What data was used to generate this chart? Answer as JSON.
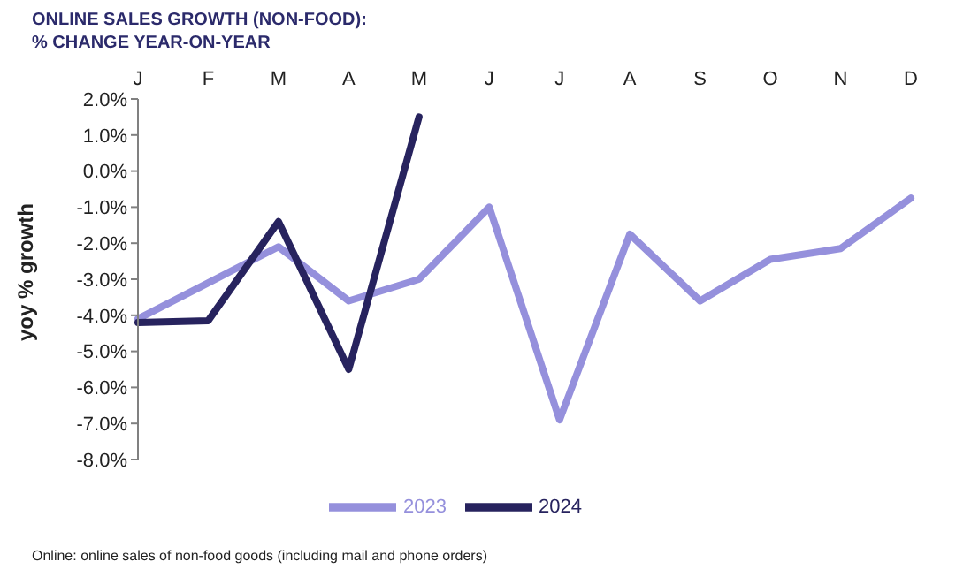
{
  "chart_data": {
    "type": "line",
    "title": "ONLINE SALES GROWTH (NON-FOOD):",
    "subtitle": "% CHANGE YEAR-ON-YEAR",
    "ylabel": "yoy % growth",
    "categories": [
      "J",
      "F",
      "M",
      "A",
      "M",
      "J",
      "J",
      "A",
      "S",
      "O",
      "N",
      "D"
    ],
    "series": [
      {
        "name": "2023",
        "color": "#9590dc",
        "values": [
          -4.1,
          -3.1,
          -2.1,
          -3.6,
          -3.0,
          -1.0,
          -6.9,
          -1.75,
          -3.6,
          -2.45,
          -2.15,
          -0.75
        ]
      },
      {
        "name": "2024",
        "color": "#27235e",
        "values": [
          -4.2,
          -4.15,
          -1.4,
          -5.5,
          1.5,
          null,
          null,
          null,
          null,
          null,
          null,
          null
        ]
      }
    ],
    "ylim": [
      -8,
      2
    ],
    "yticks": [
      {
        "value": 2,
        "label": "2.0%"
      },
      {
        "value": 1,
        "label": "1.0%"
      },
      {
        "value": 0,
        "label": "0.0%"
      },
      {
        "value": -1,
        "label": "-1.0%"
      },
      {
        "value": -2,
        "label": "-2.0%"
      },
      {
        "value": -3,
        "label": "-3.0%"
      },
      {
        "value": -4,
        "label": "-4.0%"
      },
      {
        "value": -5,
        "label": "-5.0%"
      },
      {
        "value": -6,
        "label": "-6.0%"
      },
      {
        "value": -7,
        "label": "-7.0%"
      },
      {
        "value": -8,
        "label": "-8.0%"
      }
    ],
    "grid": false,
    "legend": "bottom",
    "marker": "none",
    "line_style": "solid",
    "annotations": [
      "Online: online sales of non-food goods (including mail and phone orders)"
    ]
  }
}
